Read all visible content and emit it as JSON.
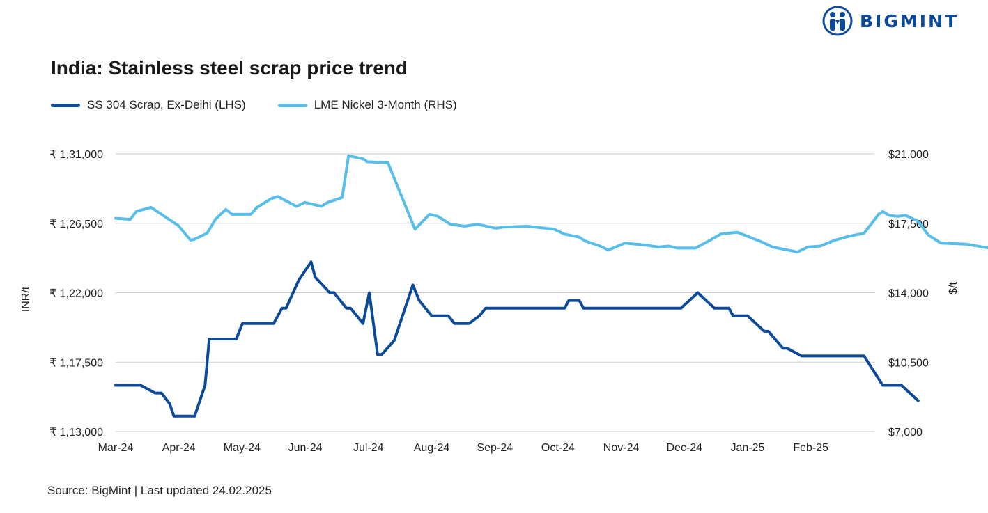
{
  "brand": {
    "name": "BIGMINT",
    "icon": "people-circle-icon",
    "color": "#0d4a9a"
  },
  "chart_data": {
    "type": "line",
    "title": "India: Stainless steel scrap price trend",
    "source": "Source: BigMint | Last updated 24.02.2025",
    "legend_position": "top-left",
    "grid": true,
    "x_ticks": [
      "Mar-24",
      "Apr-24",
      "May-24",
      "Jun-24",
      "Jul-24",
      "Aug-24",
      "Sep-24",
      "Oct-24",
      "Nov-24",
      "Dec-24",
      "Jan-25",
      "Feb-25"
    ],
    "y_left": {
      "label": "INR/t",
      "min": 113000,
      "max": 131000,
      "ticks": [
        113000,
        117500,
        122000,
        126500,
        131000
      ],
      "tick_labels": [
        "₹ 1,13,000",
        "₹ 1,17,500",
        "₹ 1,22,000",
        "₹ 1,26,500",
        "₹ 1,31,000"
      ]
    },
    "y_right": {
      "label": "$/t",
      "min": 7000,
      "max": 21000,
      "ticks": [
        7000,
        10500,
        14000,
        17500,
        21000
      ],
      "tick_labels": [
        "$7,000",
        "$10,500",
        "$14,000",
        "$17,500",
        "$21,000"
      ]
    },
    "series": [
      {
        "name": "SS 304 Scrap, Ex-Delhi (LHS)",
        "axis": "left",
        "color": "#0d4a9a",
        "points": [
          [
            "2024-03-01",
            116000
          ],
          [
            "2024-03-13",
            116000
          ],
          [
            "2024-03-20",
            115500
          ],
          [
            "2024-03-23",
            115500
          ],
          [
            "2024-03-27",
            114800
          ],
          [
            "2024-03-29",
            114000
          ],
          [
            "2024-04-01",
            114000
          ],
          [
            "2024-04-08",
            114000
          ],
          [
            "2024-04-13",
            116000
          ],
          [
            "2024-04-15",
            119000
          ],
          [
            "2024-04-28",
            119000
          ],
          [
            "2024-05-01",
            120000
          ],
          [
            "2024-05-16",
            120000
          ],
          [
            "2024-05-20",
            121000
          ],
          [
            "2024-05-22",
            121000
          ],
          [
            "2024-05-28",
            122800
          ],
          [
            "2024-06-03",
            124000
          ],
          [
            "2024-06-05",
            123000
          ],
          [
            "2024-06-12",
            122000
          ],
          [
            "2024-06-14",
            122000
          ],
          [
            "2024-06-20",
            121000
          ],
          [
            "2024-06-22",
            121000
          ],
          [
            "2024-06-28",
            120000
          ],
          [
            "2024-07-01",
            122000
          ],
          [
            "2024-07-05",
            118000
          ],
          [
            "2024-07-07",
            118000
          ],
          [
            "2024-07-13",
            118900
          ],
          [
            "2024-07-22",
            122500
          ],
          [
            "2024-07-25",
            121500
          ],
          [
            "2024-07-31",
            120500
          ],
          [
            "2024-08-08",
            120500
          ],
          [
            "2024-08-11",
            120000
          ],
          [
            "2024-08-18",
            120000
          ],
          [
            "2024-08-23",
            120500
          ],
          [
            "2024-08-26",
            121000
          ],
          [
            "2024-10-03",
            121000
          ],
          [
            "2024-10-05",
            121500
          ],
          [
            "2024-10-10",
            121500
          ],
          [
            "2024-10-12",
            121000
          ],
          [
            "2024-11-28",
            121000
          ],
          [
            "2024-12-06",
            122000
          ],
          [
            "2024-12-14",
            121000
          ],
          [
            "2024-12-21",
            121000
          ],
          [
            "2024-12-23",
            120500
          ],
          [
            "2024-12-30",
            120500
          ],
          [
            "2025-01-07",
            119500
          ],
          [
            "2025-01-09",
            119500
          ],
          [
            "2025-01-16",
            118400
          ],
          [
            "2025-01-18",
            118400
          ],
          [
            "2025-01-25",
            117900
          ],
          [
            "2025-02-24",
            117900
          ],
          [
            "2025-03-05",
            116000
          ],
          [
            "2025-03-14",
            116000
          ],
          [
            "2025-03-22",
            115000
          ]
        ]
      },
      {
        "name": "LME Nickel 3-Month (RHS)",
        "axis": "right",
        "color": "#57bde9",
        "points": [
          [
            "2024-03-01",
            17750
          ],
          [
            "2024-03-08",
            17700
          ],
          [
            "2024-03-11",
            18100
          ],
          [
            "2024-03-18",
            18300
          ],
          [
            "2024-03-28",
            17600
          ],
          [
            "2024-03-31",
            17400
          ],
          [
            "2024-04-06",
            16650
          ],
          [
            "2024-04-08",
            16700
          ],
          [
            "2024-04-14",
            17000
          ],
          [
            "2024-04-18",
            17700
          ],
          [
            "2024-04-23",
            18200
          ],
          [
            "2024-04-26",
            17950
          ],
          [
            "2024-05-05",
            17950
          ],
          [
            "2024-05-08",
            18300
          ],
          [
            "2024-05-15",
            18750
          ],
          [
            "2024-05-18",
            18850
          ],
          [
            "2024-05-27",
            18350
          ],
          [
            "2024-05-31",
            18550
          ],
          [
            "2024-06-08",
            18350
          ],
          [
            "2024-06-11",
            18550
          ],
          [
            "2024-06-18",
            18800
          ],
          [
            "2024-06-21",
            20900
          ],
          [
            "2024-06-28",
            20750
          ],
          [
            "2024-06-30",
            20600
          ],
          [
            "2024-07-10",
            20550
          ],
          [
            "2024-07-23",
            17200
          ],
          [
            "2024-07-30",
            17950
          ],
          [
            "2024-08-03",
            17850
          ],
          [
            "2024-08-09",
            17450
          ],
          [
            "2024-08-16",
            17350
          ],
          [
            "2024-08-22",
            17450
          ],
          [
            "2024-08-31",
            17250
          ],
          [
            "2024-09-03",
            17300
          ],
          [
            "2024-09-15",
            17350
          ],
          [
            "2024-09-28",
            17200
          ],
          [
            "2024-10-03",
            16950
          ],
          [
            "2024-10-10",
            16800
          ],
          [
            "2024-10-13",
            16600
          ],
          [
            "2024-10-20",
            16350
          ],
          [
            "2024-10-24",
            16150
          ],
          [
            "2024-11-01",
            16500
          ],
          [
            "2024-11-11",
            16400
          ],
          [
            "2024-11-17",
            16300
          ],
          [
            "2024-11-22",
            16350
          ],
          [
            "2024-11-26",
            16250
          ],
          [
            "2024-12-05",
            16250
          ],
          [
            "2024-12-12",
            16650
          ],
          [
            "2024-12-17",
            16950
          ],
          [
            "2024-12-25",
            17050
          ],
          [
            "2025-01-06",
            16550
          ],
          [
            "2025-01-11",
            16300
          ],
          [
            "2025-01-23",
            16050
          ],
          [
            "2025-01-28",
            16300
          ],
          [
            "2025-02-03",
            16350
          ],
          [
            "2025-02-10",
            16650
          ],
          [
            "2025-02-17",
            16850
          ],
          [
            "2025-02-24",
            17000
          ],
          [
            "2025-02-27",
            17400
          ],
          [
            "2025-03-03",
            17950
          ],
          [
            "2025-03-05",
            18100
          ],
          [
            "2025-03-08",
            17900
          ],
          [
            "2025-03-12",
            17850
          ],
          [
            "2025-03-16",
            17900
          ],
          [
            "2025-03-22",
            17600
          ],
          [
            "2025-03-27",
            16900
          ],
          [
            "2025-04-02",
            16500
          ],
          [
            "2025-04-14",
            16450
          ],
          [
            "2025-04-28",
            16200
          ],
          [
            "2025-05-04",
            16300
          ],
          [
            "2025-05-08",
            16400
          ],
          [
            "2025-05-13",
            16450
          ],
          [
            "2025-05-20",
            16250
          ],
          [
            "2025-05-26",
            16300
          ],
          [
            "2025-06-07",
            16200
          ],
          [
            "2025-06-16",
            16350
          ],
          [
            "2025-06-25",
            16250
          ],
          [
            "2025-07-04",
            16050
          ],
          [
            "2025-07-16",
            15800
          ]
        ]
      }
    ]
  }
}
